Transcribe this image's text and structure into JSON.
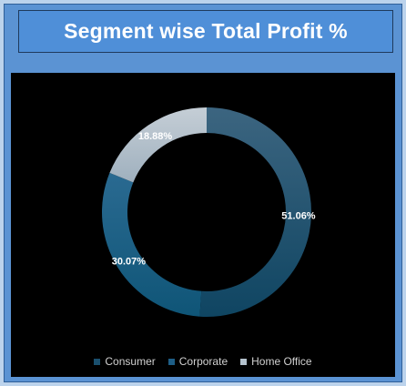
{
  "header": {
    "title": "Segment wise Total Profit %"
  },
  "chart_data": {
    "type": "pie",
    "title": "Segment wise Total Profit %",
    "donut": true,
    "categories": [
      "Consumer",
      "Corporate",
      "Home Office"
    ],
    "values": [
      51.06,
      30.07,
      18.88
    ],
    "labels": [
      "51.06%",
      "30.07%",
      "18.88%"
    ],
    "colors": [
      "#1a4f6e",
      "#1e5e86",
      "#a8b7c4"
    ],
    "legend_position": "bottom"
  }
}
